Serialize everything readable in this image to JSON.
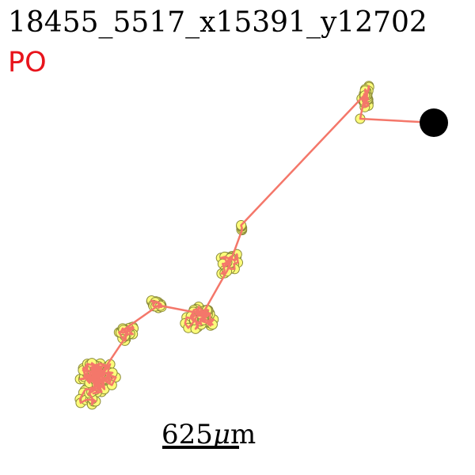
{
  "title": "18455_5517_x15391_y12702",
  "label": "PO",
  "scale_bar": {
    "text_parts": [
      "625",
      "μ",
      "m"
    ]
  }
}
